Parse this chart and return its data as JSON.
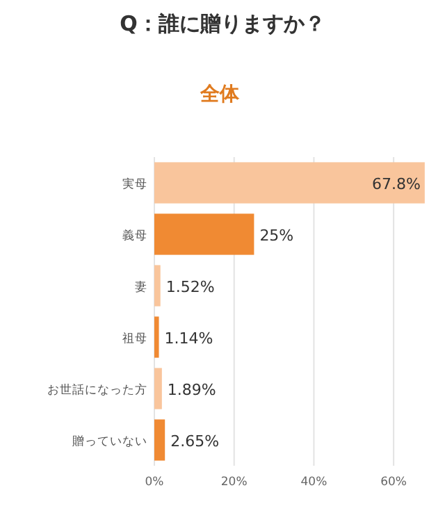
{
  "chart_data": {
    "type": "bar",
    "orientation": "horizontal",
    "title": "Q：誰に贈りますか？",
    "subtitle": "全体",
    "categories": [
      "実母",
      "義母",
      "妻",
      "祖母",
      "お世話になった方",
      "贈っていない"
    ],
    "values": [
      67.8,
      25,
      1.52,
      1.14,
      1.89,
      2.65
    ],
    "colors": [
      "#f9c59c",
      "#f08a33",
      "#f9c59c",
      "#f08a33",
      "#f9c59c",
      "#f08a33"
    ],
    "value_labels": [
      "67.8%",
      "25%",
      "1.52%",
      "1.14%",
      "1.89%",
      "2.65%"
    ],
    "xlim": [
      0,
      68
    ],
    "xticks": [
      {
        "value": 0,
        "label": "0%"
      },
      {
        "value": 20,
        "label": "20%"
      },
      {
        "value": 40,
        "label": "40%"
      },
      {
        "value": 60,
        "label": "60%"
      }
    ],
    "grid": "x"
  }
}
